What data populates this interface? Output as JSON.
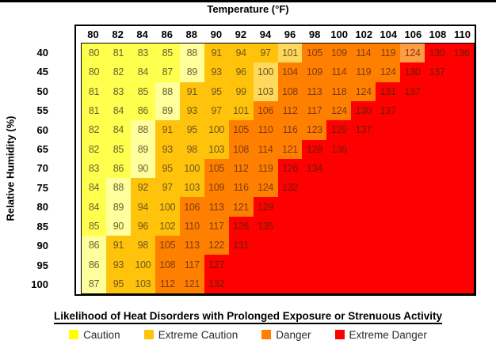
{
  "legend": {
    "title": "Likelihood of Heat Disorders with Prolonged Exposure or Strenuous Activity",
    "items": [
      {
        "label": "Caution",
        "color": "#FFFF00"
      },
      {
        "label": "Extreme Caution",
        "color": "#FFC30B"
      },
      {
        "label": "Danger",
        "color": "#FF8000"
      },
      {
        "label": "Extreme Danger",
        "color": "#FE0000"
      }
    ]
  },
  "palette": {
    "y": {
      "bg": "#FFFF4D",
      "fg": "#6a6134"
    },
    "Y": {
      "bg": "#FFFF9E",
      "fg": "#6a6134"
    },
    "g": {
      "bg": "#FFC30B",
      "fg": "#6f5520"
    },
    "G": {
      "bg": "#FFD95E",
      "fg": "#6f5520"
    },
    "o": {
      "bg": "#FF8000",
      "fg": "#7d3a10"
    },
    "O": {
      "bg": "#FF9D42",
      "fg": "#7d3a10"
    },
    "r": {
      "bg": "#FE0000",
      "fg": "#6b1e04"
    }
  },
  "chart_data": {
    "type": "heatmap",
    "title": "Temperature (°F)",
    "xlabel": "Temperature (°F)",
    "ylabel": "Relative Humidity (%)",
    "legend_position": "bottom",
    "x": [
      80,
      82,
      84,
      86,
      88,
      90,
      92,
      94,
      96,
      98,
      100,
      102,
      104,
      106,
      108,
      110
    ],
    "y": [
      40,
      45,
      50,
      55,
      60,
      65,
      70,
      75,
      80,
      85,
      90,
      95,
      100
    ],
    "values": [
      [
        80,
        81,
        83,
        85,
        88,
        91,
        94,
        97,
        101,
        105,
        109,
        114,
        119,
        124,
        130,
        136
      ],
      [
        80,
        82,
        84,
        87,
        89,
        93,
        96,
        100,
        104,
        109,
        114,
        119,
        124,
        130,
        137,
        null
      ],
      [
        81,
        83,
        85,
        88,
        91,
        95,
        99,
        103,
        108,
        113,
        118,
        124,
        131,
        137,
        null,
        null
      ],
      [
        81,
        84,
        86,
        89,
        93,
        97,
        101,
        106,
        112,
        117,
        124,
        130,
        137,
        null,
        null,
        null
      ],
      [
        82,
        84,
        88,
        91,
        95,
        100,
        105,
        110,
        116,
        123,
        129,
        137,
        null,
        null,
        null,
        null
      ],
      [
        82,
        85,
        89,
        93,
        98,
        103,
        108,
        114,
        121,
        128,
        136,
        null,
        null,
        null,
        null,
        null
      ],
      [
        83,
        86,
        90,
        95,
        100,
        105,
        112,
        119,
        126,
        134,
        null,
        null,
        null,
        null,
        null,
        null
      ],
      [
        84,
        88,
        92,
        97,
        103,
        109,
        116,
        124,
        132,
        null,
        null,
        null,
        null,
        null,
        null,
        null
      ],
      [
        84,
        89,
        94,
        100,
        106,
        113,
        121,
        129,
        null,
        null,
        null,
        null,
        null,
        null,
        null,
        null
      ],
      [
        85,
        90,
        96,
        102,
        110,
        117,
        126,
        135,
        null,
        null,
        null,
        null,
        null,
        null,
        null,
        null
      ],
      [
        86,
        91,
        98,
        105,
        113,
        122,
        131,
        null,
        null,
        null,
        null,
        null,
        null,
        null,
        null,
        null
      ],
      [
        86,
        93,
        100,
        108,
        117,
        127,
        null,
        null,
        null,
        null,
        null,
        null,
        null,
        null,
        null,
        null
      ],
      [
        87,
        95,
        103,
        112,
        121,
        132,
        null,
        null,
        null,
        null,
        null,
        null,
        null,
        null,
        null,
        null
      ]
    ],
    "cell_colors": [
      [
        "y",
        "y",
        "y",
        "y",
        "Y",
        "g",
        "g",
        "g",
        "G",
        "o",
        "o",
        "o",
        "o",
        "O",
        "r",
        "r"
      ],
      [
        "y",
        "y",
        "y",
        "y",
        "Y",
        "g",
        "g",
        "G",
        "o",
        "o",
        "o",
        "o",
        "o",
        "r",
        "r",
        "r"
      ],
      [
        "y",
        "y",
        "y",
        "Y",
        "g",
        "g",
        "g",
        "G",
        "o",
        "o",
        "o",
        "o",
        "r",
        "r",
        "r",
        "r"
      ],
      [
        "y",
        "y",
        "y",
        "Y",
        "g",
        "g",
        "g",
        "o",
        "o",
        "o",
        "o",
        "r",
        "r",
        "r",
        "r",
        "r"
      ],
      [
        "y",
        "y",
        "Y",
        "g",
        "g",
        "g",
        "o",
        "o",
        "o",
        "o",
        "r",
        "r",
        "r",
        "r",
        "r",
        "r"
      ],
      [
        "y",
        "y",
        "Y",
        "g",
        "g",
        "g",
        "o",
        "o",
        "o",
        "r",
        "r",
        "r",
        "r",
        "r",
        "r",
        "r"
      ],
      [
        "y",
        "y",
        "Y",
        "g",
        "g",
        "o",
        "o",
        "o",
        "r",
        "r",
        "r",
        "r",
        "r",
        "r",
        "r",
        "r"
      ],
      [
        "y",
        "Y",
        "g",
        "g",
        "g",
        "o",
        "o",
        "o",
        "r",
        "r",
        "r",
        "r",
        "r",
        "r",
        "r",
        "r"
      ],
      [
        "y",
        "Y",
        "g",
        "g",
        "o",
        "o",
        "o",
        "r",
        "r",
        "r",
        "r",
        "r",
        "r",
        "r",
        "r",
        "r"
      ],
      [
        "y",
        "Y",
        "g",
        "g",
        "o",
        "o",
        "r",
        "r",
        "r",
        "r",
        "r",
        "r",
        "r",
        "r",
        "r",
        "r"
      ],
      [
        "Y",
        "g",
        "g",
        "o",
        "o",
        "o",
        "r",
        "r",
        "r",
        "r",
        "r",
        "r",
        "r",
        "r",
        "r",
        "r"
      ],
      [
        "Y",
        "g",
        "g",
        "o",
        "o",
        "r",
        "r",
        "r",
        "r",
        "r",
        "r",
        "r",
        "r",
        "r",
        "r",
        "r"
      ],
      [
        "Y",
        "g",
        "g",
        "o",
        "o",
        "r",
        "r",
        "r",
        "r",
        "r",
        "r",
        "r",
        "r",
        "r",
        "r",
        "r"
      ]
    ]
  }
}
